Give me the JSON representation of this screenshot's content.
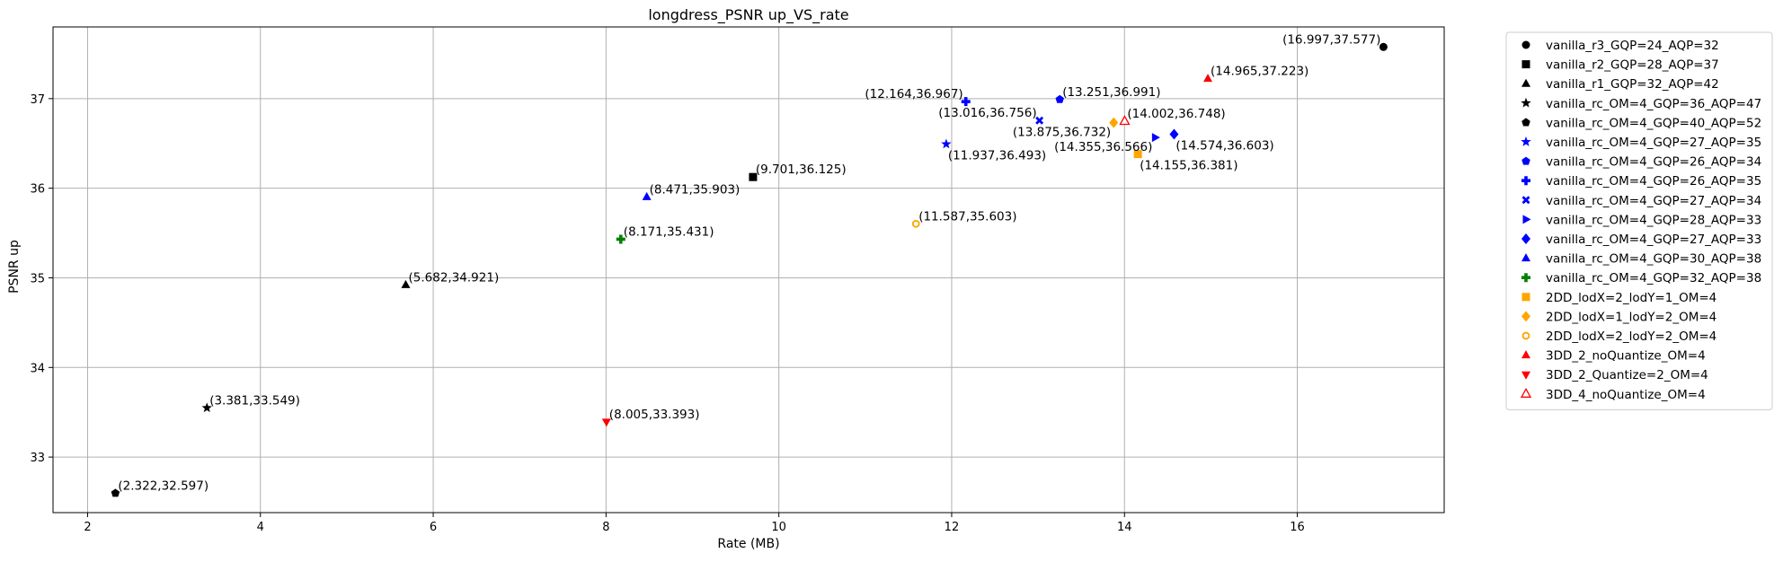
{
  "chart_data": {
    "type": "scatter",
    "title": "longdress_PSNR up_VS_rate",
    "xlabel": "Rate (MB)",
    "ylabel": "PSNR up",
    "xlim": [
      1.6,
      17.7
    ],
    "ylim": [
      32.38,
      37.8
    ],
    "x_ticks": [
      2,
      4,
      6,
      8,
      10,
      12,
      14,
      16
    ],
    "y_ticks": [
      33,
      34,
      35,
      36,
      37
    ],
    "grid": true,
    "legend_position": "outside-right",
    "series": [
      {
        "name": "vanilla_r3_GQP=24_AQP=32",
        "marker": "circle",
        "color": "#000000",
        "points": [
          {
            "x": 16.997,
            "y": 37.577,
            "label": "(16.997,37.577)",
            "label_anchor": "left"
          }
        ]
      },
      {
        "name": "vanilla_r2_GQP=28_AQP=37",
        "marker": "square",
        "color": "#000000",
        "points": [
          {
            "x": 9.701,
            "y": 36.125,
            "label": "(9.701,36.125)",
            "label_anchor": "right"
          }
        ]
      },
      {
        "name": "vanilla_r1_GQP=32_AQP=42",
        "marker": "triangle-up",
        "color": "#000000",
        "points": [
          {
            "x": 5.682,
            "y": 34.921,
            "label": "(5.682,34.921)",
            "label_anchor": "right"
          }
        ]
      },
      {
        "name": "vanilla_rc_OM=4_GQP=36_AQP=47",
        "marker": "star",
        "color": "#000000",
        "points": [
          {
            "x": 3.381,
            "y": 33.549,
            "label": "(3.381,33.549)",
            "label_anchor": "right"
          }
        ]
      },
      {
        "name": "vanilla_rc_OM=4_GQP=40_AQP=52",
        "marker": "pentagon",
        "color": "#000000",
        "points": [
          {
            "x": 2.322,
            "y": 32.597,
            "label": "(2.322,32.597)",
            "label_anchor": "right"
          }
        ]
      },
      {
        "name": "vanilla_rc_OM=4_GQP=27_AQP=35",
        "marker": "star",
        "color": "#0000ff",
        "points": [
          {
            "x": 11.937,
            "y": 36.493,
            "label": "(11.937,36.493)",
            "label_anchor": "below-right"
          }
        ]
      },
      {
        "name": "vanilla_rc_OM=4_GQP=26_AQP=34",
        "marker": "pentagon",
        "color": "#0000ff",
        "points": [
          {
            "x": 13.251,
            "y": 36.991,
            "label": "(13.251,36.991)",
            "label_anchor": "right"
          }
        ]
      },
      {
        "name": "vanilla_rc_OM=4_GQP=26_AQP=35",
        "marker": "plus",
        "color": "#0000ff",
        "points": [
          {
            "x": 12.164,
            "y": 36.967,
            "label": "(12.164,36.967)",
            "label_anchor": "left"
          }
        ]
      },
      {
        "name": "vanilla_rc_OM=4_GQP=27_AQP=34",
        "marker": "x",
        "color": "#0000ff",
        "points": [
          {
            "x": 13.016,
            "y": 36.756,
            "label": "(13.016,36.756)",
            "label_anchor": "left"
          }
        ]
      },
      {
        "name": "vanilla_rc_OM=4_GQP=28_AQP=33",
        "marker": "triangle-right",
        "color": "#0000ff",
        "points": [
          {
            "x": 14.355,
            "y": 36.566,
            "label": "(14.355,36.566)",
            "label_anchor": "below-left"
          }
        ]
      },
      {
        "name": "vanilla_rc_OM=4_GQP=27_AQP=33",
        "marker": "diamond",
        "color": "#0000ff",
        "points": [
          {
            "x": 14.574,
            "y": 36.603,
            "label": "(14.574,36.603)",
            "label_anchor": "below-right"
          }
        ]
      },
      {
        "name": "vanilla_rc_OM=4_GQP=30_AQP=38",
        "marker": "triangle-up",
        "color": "#0000ff",
        "points": [
          {
            "x": 8.471,
            "y": 35.903,
            "label": "(8.471,35.903)",
            "label_anchor": "right"
          }
        ]
      },
      {
        "name": "vanilla_rc_OM=4_GQP=32_AQP=38",
        "marker": "plus",
        "color": "#008000",
        "points": [
          {
            "x": 8.171,
            "y": 35.431,
            "label": "(8.171,35.431)",
            "label_anchor": "right"
          }
        ]
      },
      {
        "name": "2DD_lodX=2_lodY=1_OM=4",
        "marker": "square",
        "color": "#ffa500",
        "points": [
          {
            "x": 14.155,
            "y": 36.381,
            "label": "(14.155,36.381)",
            "label_anchor": "below-right"
          }
        ]
      },
      {
        "name": "2DD_lodX=1_lodY=2_OM=4",
        "marker": "diamond",
        "color": "#ffa500",
        "points": [
          {
            "x": 13.875,
            "y": 36.732,
            "label": "(13.875,36.732)",
            "label_anchor": "below-left"
          }
        ]
      },
      {
        "name": "2DD_lodX=2_lodY=2_OM=4",
        "marker": "octagon-hollow",
        "color": "#ffa500",
        "points": [
          {
            "x": 11.587,
            "y": 35.603,
            "label": "(11.587,35.603)",
            "label_anchor": "right"
          }
        ]
      },
      {
        "name": "3DD_2_noQuantize_OM=4",
        "marker": "triangle-up",
        "color": "#ff0000",
        "points": [
          {
            "x": 14.965,
            "y": 37.223,
            "label": "(14.965,37.223)",
            "label_anchor": "right"
          }
        ]
      },
      {
        "name": "3DD_2_Quantize=2_OM=4",
        "marker": "triangle-down",
        "color": "#ff0000",
        "points": [
          {
            "x": 8.005,
            "y": 33.393,
            "label": "(8.005,33.393)",
            "label_anchor": "right"
          }
        ]
      },
      {
        "name": "3DD_4_noQuantize_OM=4",
        "marker": "triangle-up-hollow",
        "color": "#ff0000",
        "points": [
          {
            "x": 14.002,
            "y": 36.748,
            "label": "(14.002,36.748)",
            "label_anchor": "right"
          }
        ]
      }
    ]
  }
}
